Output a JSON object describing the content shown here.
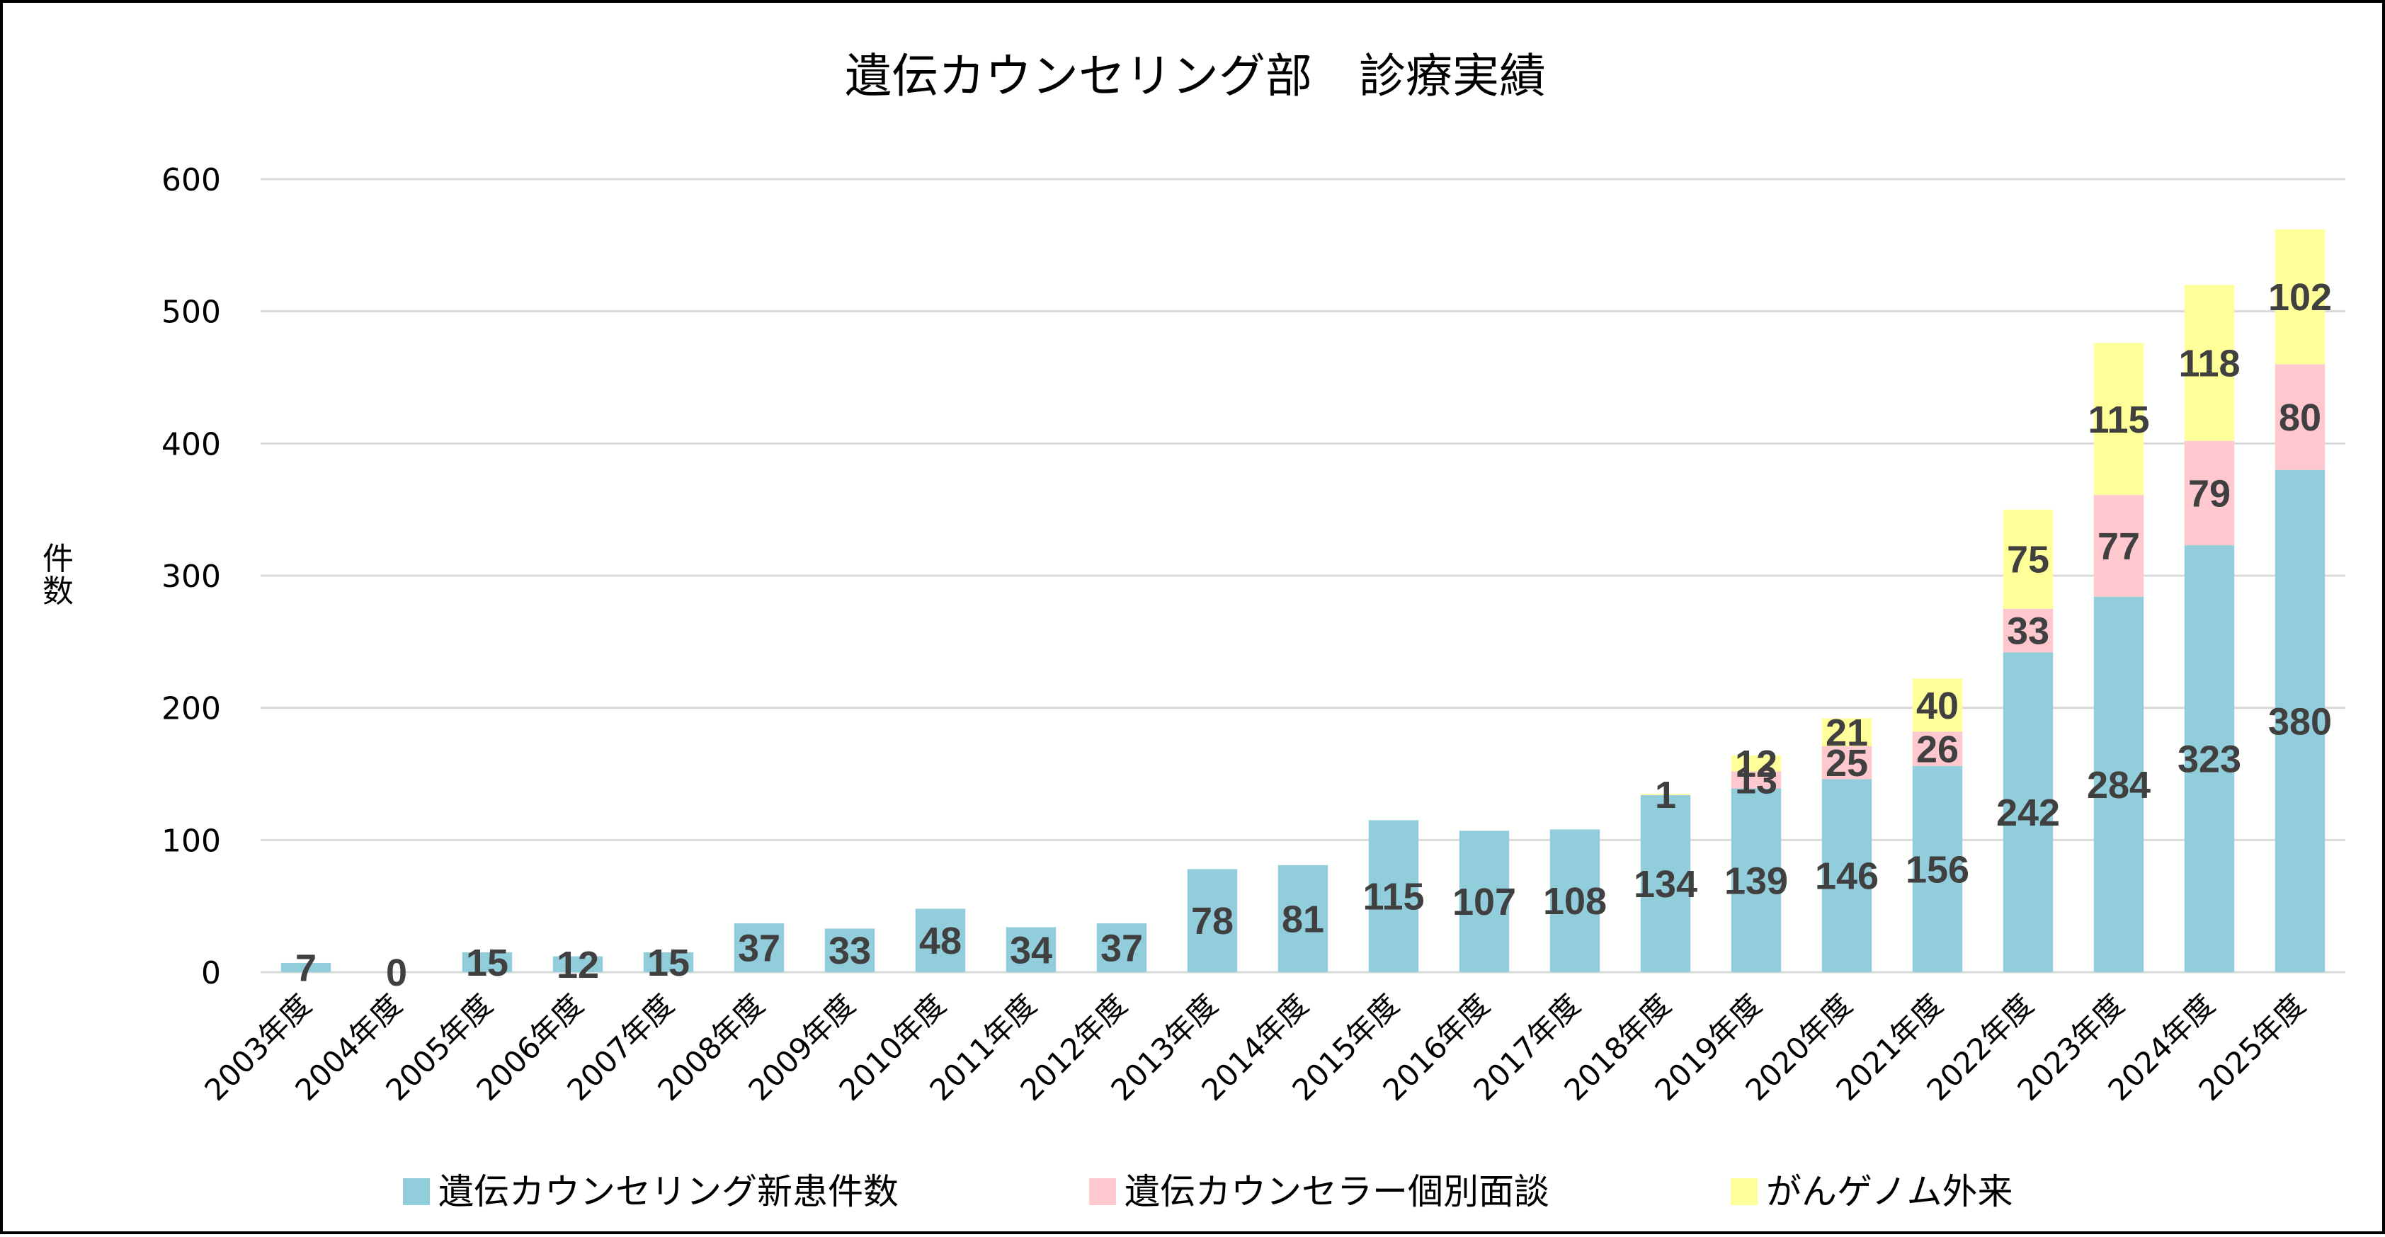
{
  "chart_data": {
    "type": "bar",
    "stacked": true,
    "title": "遺伝カウンセリング部　診療実績",
    "xlabel": "",
    "ylabel": "件数",
    "ylim": [
      0,
      600
    ],
    "yticks": [
      0,
      100,
      200,
      300,
      400,
      500,
      600
    ],
    "ytick_labels": [
      "0",
      "100",
      "200",
      "300",
      "400",
      "500",
      "600"
    ],
    "grid": true,
    "legend_position": "bottom",
    "categories": [
      "2003年度",
      "2004年度",
      "2005年度",
      "2006年度",
      "2007年度",
      "2008年度",
      "2009年度",
      "2010年度",
      "2011年度",
      "2012年度",
      "2013年度",
      "2014年度",
      "2015年度",
      "2016年度",
      "2017年度",
      "2018年度",
      "2019年度",
      "2020年度",
      "2021年度",
      "2022年度",
      "2023年度",
      "2024年度",
      "2025年度"
    ],
    "series": [
      {
        "name": "遺伝カウンセリング新患件数",
        "color": "#92CDDC",
        "values": [
          7,
          0,
          15,
          12,
          15,
          37,
          33,
          48,
          34,
          37,
          78,
          81,
          115,
          107,
          108,
          134,
          139,
          146,
          156,
          242,
          284,
          323,
          380
        ]
      },
      {
        "name": "遺伝カウンセラー個別面談",
        "color": "#FFC7CE",
        "values": [
          null,
          null,
          null,
          null,
          null,
          null,
          null,
          null,
          null,
          null,
          null,
          null,
          null,
          null,
          null,
          0,
          13,
          25,
          26,
          33,
          77,
          79,
          80
        ]
      },
      {
        "name": "がんゲノム外来",
        "color": "#FFFF99",
        "values": [
          null,
          null,
          null,
          null,
          null,
          null,
          null,
          null,
          null,
          null,
          null,
          null,
          null,
          null,
          null,
          1,
          12,
          21,
          40,
          75,
          115,
          118,
          102
        ]
      }
    ],
    "data_label_color": "#404040"
  }
}
